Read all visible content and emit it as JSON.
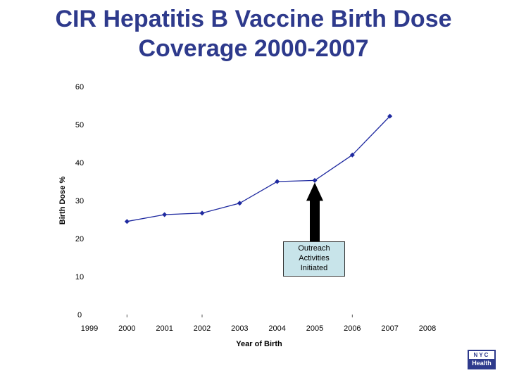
{
  "page": {
    "title_line1": "CIR Hepatitis B Vaccine Birth Dose",
    "title_line2": "Coverage 2000-2007"
  },
  "chart_data": {
    "type": "line",
    "title": "CIR Hepatitis B Vaccine Birth Dose Coverage 2000-2007",
    "xlabel": "Year of Birth",
    "ylabel": "Birth Dose %",
    "xlim": [
      1999,
      2008
    ],
    "ylim": [
      0,
      60
    ],
    "x_ticks": [
      1999,
      2000,
      2001,
      2002,
      2003,
      2004,
      2005,
      2006,
      2007,
      2008
    ],
    "y_ticks": [
      0,
      10,
      20,
      30,
      40,
      50,
      60
    ],
    "grid": false,
    "series": [
      {
        "name": "Birth Dose %",
        "color": "#1f2aa0",
        "x": [
          2000,
          2001,
          2002,
          2003,
          2004,
          2005,
          2006,
          2007
        ],
        "values": [
          24.5,
          26.3,
          26.7,
          29.3,
          35.0,
          35.3,
          42.0,
          52.2
        ]
      }
    ],
    "annotation": {
      "year": 2005,
      "lines": [
        "Outreach",
        "Activities",
        "Initiated"
      ]
    }
  },
  "logo": {
    "top_text": "NYC",
    "bottom_text": "Health",
    "color": "#2e3a8c"
  }
}
